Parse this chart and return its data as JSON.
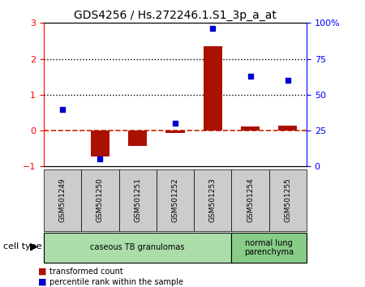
{
  "title": "GDS4256 / Hs.272246.1.S1_3p_a_at",
  "samples": [
    "GSM501249",
    "GSM501250",
    "GSM501251",
    "GSM501252",
    "GSM501253",
    "GSM501254",
    "GSM501255"
  ],
  "transformed_count": [
    0.0,
    -0.72,
    -0.42,
    -0.07,
    2.35,
    0.12,
    0.13
  ],
  "percentile_rank": [
    40,
    5,
    null,
    30,
    96,
    63,
    60
  ],
  "left_ylim": [
    -1,
    3
  ],
  "right_ylim": [
    0,
    100
  ],
  "left_yticks": [
    -1,
    0,
    1,
    2,
    3
  ],
  "right_yticks": [
    0,
    25,
    50,
    75,
    100
  ],
  "right_yticklabels": [
    "0",
    "25",
    "50",
    "75",
    "100%"
  ],
  "dotted_lines": [
    1,
    2
  ],
  "dashed_zero_color": "#cc2200",
  "bar_color": "#aa1100",
  "point_color": "#0000cc",
  "bar_width": 0.5,
  "sample_box_color": "#cccccc",
  "cell_type_groups": [
    {
      "label": "caseous TB granulomas",
      "n_samples": 5,
      "color": "#aaddaa"
    },
    {
      "label": "normal lung\nparenchyma",
      "n_samples": 2,
      "color": "#88cc88"
    }
  ],
  "cell_type_label": "cell type",
  "legend_entries": [
    {
      "color": "#aa1100",
      "label": "transformed count"
    },
    {
      "color": "#0000cc",
      "label": "percentile rank within the sample"
    }
  ],
  "background_color": "#ffffff",
  "plot_bg_color": "#ffffff"
}
